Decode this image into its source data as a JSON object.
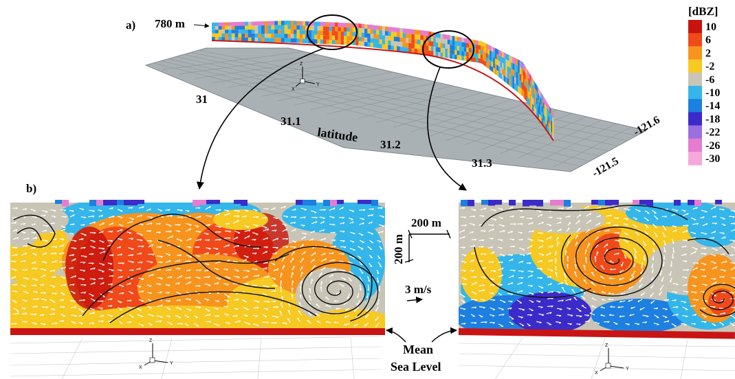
{
  "panel_a": {
    "label": "a)",
    "height_label": "780 m",
    "latitude_label": "latitude",
    "latitude_ticks": [
      "31",
      "31.1",
      "31.2",
      "31.3"
    ],
    "longitude_ticks": [
      "-121.6",
      "-121.5"
    ]
  },
  "panel_b": {
    "label": "b)",
    "scale_horizontal": "200 m",
    "scale_vertical": "200 m",
    "vector_scale": "3 m/s",
    "msl_line1": "Mean",
    "msl_line2": "Sea Level"
  },
  "axis_triad": {
    "x": "X",
    "y": "Y",
    "z": "Z"
  },
  "colorbar": {
    "title": "[dBZ]",
    "ticks": [
      "10",
      "6",
      "2",
      "-2",
      "-6",
      "-10",
      "-14",
      "-18",
      "-22",
      "-26",
      "-30"
    ],
    "colors": [
      "#c8140e",
      "#f04a1a",
      "#f7941d",
      "#f6c923",
      "#c9c5b6",
      "#34b6ea",
      "#1d7fe0",
      "#3b2bc9",
      "#9a6fe0",
      "#e67cd0",
      "#f4a8dc"
    ]
  }
}
